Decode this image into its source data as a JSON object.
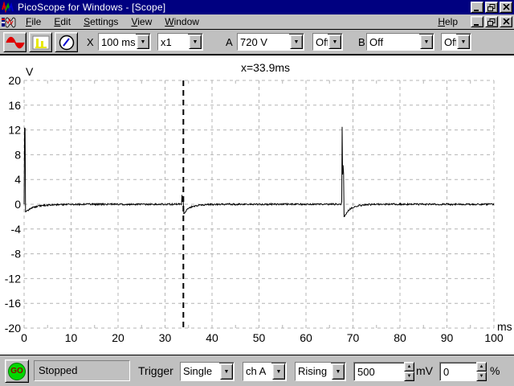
{
  "window": {
    "title": "PicoScope for Windows - [Scope]"
  },
  "menu": {
    "items": [
      {
        "u": "F",
        "rest": "ile"
      },
      {
        "u": "E",
        "rest": "dit"
      },
      {
        "u": "S",
        "rest": "ettings"
      },
      {
        "u": "V",
        "rest": "iew"
      },
      {
        "u": "W",
        "rest": "indow"
      }
    ],
    "help": {
      "u": "H",
      "rest": "elp"
    }
  },
  "toolbar": {
    "x_label": "X",
    "timebase": "100 ms",
    "multiplier": "x1",
    "a_label": "A",
    "a_range": "720 V",
    "a_coupling": "Off",
    "b_label": "B",
    "b_range": "Off",
    "b_coupling": "Off"
  },
  "statusbar": {
    "go_label": "GO",
    "status": "Stopped",
    "trigger_label": "Trigger",
    "trigger_mode": "Single",
    "trigger_source": "ch A",
    "trigger_direction": "Rising",
    "threshold_value": "500",
    "threshold_unit": "mV",
    "delay_value": "0",
    "delay_unit": "%"
  },
  "ui": {
    "dropdown_arrow": "▼",
    "spin_up": "▲",
    "spin_down": "▼",
    "accent_title": "#000080",
    "chrome_gray": "#c0c0c0",
    "go_green": "#00d800",
    "go_text_red": "#900000",
    "scope_icon_red": "#e00000",
    "spectrum_icon_yellow": "#e8e800",
    "meter_needle_blue": "#0000d0"
  },
  "chart_data": {
    "type": "line",
    "title": "",
    "annotation": "x=33.9ms",
    "xlabel": "ms",
    "ylabel": "V",
    "xlim": [
      0,
      100
    ],
    "ylim": [
      -20,
      20
    ],
    "x_tick_step": 10,
    "y_tick_step": 4,
    "x_minor_tick_step": 5,
    "grid": "dashed",
    "legend": "none",
    "cursor_x_ms": 33.9,
    "trace_color": "#000000",
    "noise_amplitude": 0.13,
    "key_points": [
      [
        0,
        0
      ],
      [
        0.1,
        12.3
      ],
      [
        0.2,
        12.3
      ],
      [
        0.3,
        -1.3
      ],
      [
        1,
        -0.85
      ],
      [
        2,
        -0.5
      ],
      [
        3,
        -0.3
      ],
      [
        4,
        -0.18
      ],
      [
        6,
        -0.08
      ],
      [
        9,
        -0.03
      ],
      [
        12,
        0
      ],
      [
        33.5,
        0
      ],
      [
        33.6,
        1.5
      ],
      [
        33.7,
        0.4
      ],
      [
        33.8,
        1.3
      ],
      [
        33.9,
        0.3
      ],
      [
        34.0,
        -1.5
      ],
      [
        34.4,
        -1.1
      ],
      [
        35,
        -0.65
      ],
      [
        36,
        -0.33
      ],
      [
        37,
        -0.16
      ],
      [
        38.5,
        -0.07
      ],
      [
        40,
        -0.02
      ],
      [
        43,
        0
      ],
      [
        67.5,
        0
      ],
      [
        67.6,
        0.4
      ],
      [
        67.7,
        12.5
      ],
      [
        67.8,
        4.8
      ],
      [
        67.9,
        6.3
      ],
      [
        68.0,
        5.0
      ],
      [
        68.1,
        -2.0
      ],
      [
        68.6,
        -1.4
      ],
      [
        69.2,
        -0.85
      ],
      [
        70,
        -0.5
      ],
      [
        71,
        -0.26
      ],
      [
        72,
        -0.13
      ],
      [
        73.5,
        -0.05
      ],
      [
        76,
        0
      ],
      [
        100,
        0
      ]
    ]
  }
}
